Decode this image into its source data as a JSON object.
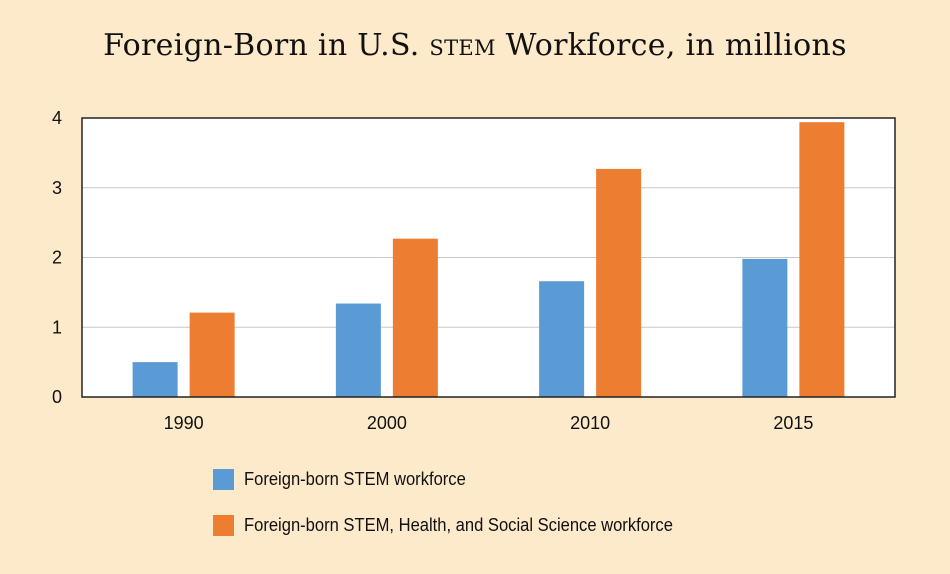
{
  "title_parts": {
    "pre": "Foreign-Born in U.S. ",
    "sc": "stem",
    "post": " Workforce, in millions"
  },
  "colors": {
    "background": "#fdeacb",
    "plot_bg": "#ffffff",
    "series1": "#5b9bd5",
    "series2": "#ed7d31",
    "grid": "#c8c8c8",
    "border": "#222222"
  },
  "chart_data": {
    "type": "bar",
    "title": "Foreign-Born in U.S. STEM Workforce, in millions",
    "xlabel": "",
    "ylabel": "",
    "categories": [
      "1990",
      "2000",
      "2010",
      "2015"
    ],
    "series": [
      {
        "name": "Foreign-born STEM workforce",
        "values": [
          0.5,
          1.34,
          1.66,
          1.98
        ]
      },
      {
        "name": "Foreign-born STEM, Health, and Social Science workforce",
        "values": [
          1.21,
          2.27,
          3.27,
          3.94
        ]
      }
    ],
    "ylim": [
      0,
      4
    ],
    "yticks": [
      "0",
      "1",
      "2",
      "3",
      "4"
    ],
    "grid": true,
    "legend_position": "bottom"
  }
}
